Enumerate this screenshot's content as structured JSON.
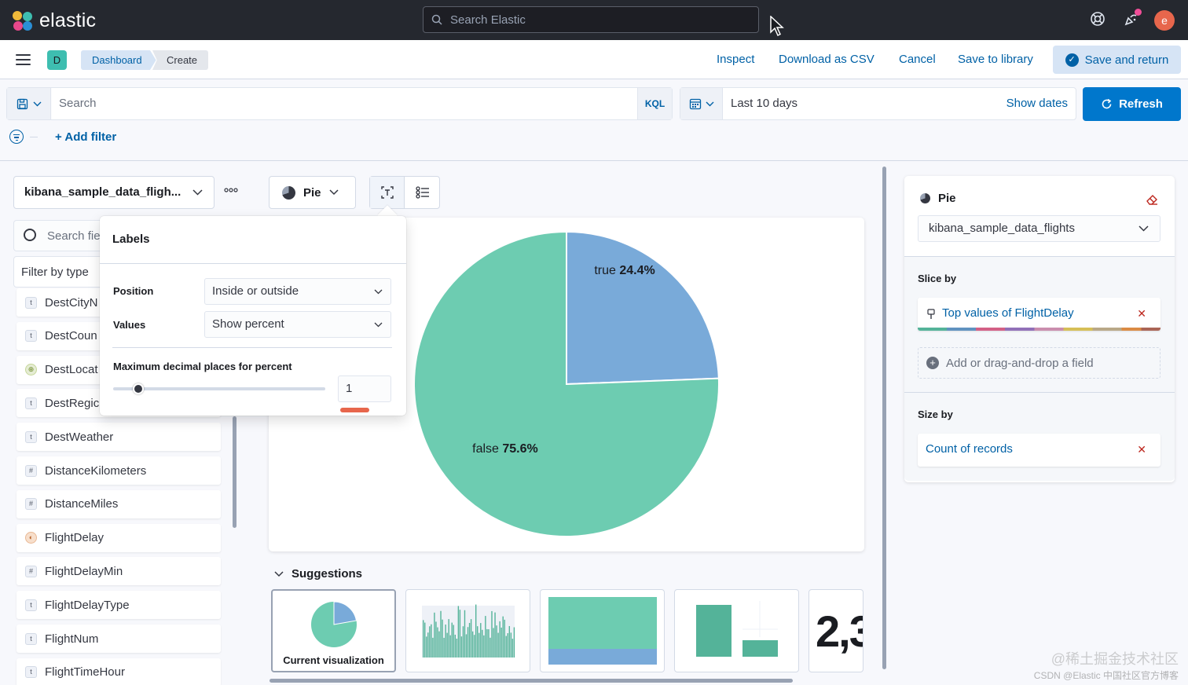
{
  "header": {
    "brand": "elastic",
    "search_placeholder": "Search Elastic",
    "avatar_initial": "e"
  },
  "navbar": {
    "space_initial": "D",
    "breadcrumbs": [
      "Dashboard",
      "Create"
    ],
    "links": [
      "Inspect",
      "Download as CSV",
      "Cancel",
      "Save to library"
    ],
    "primary_label": "Save and return"
  },
  "query": {
    "search_placeholder": "Search",
    "language": "KQL",
    "time_range": "Last 10 days",
    "show_dates": "Show dates",
    "refresh": "Refresh",
    "add_filter": "+ Add filter"
  },
  "datasource": {
    "index_pattern": "kibana_sample_data_fligh...",
    "field_search_placeholder": "Search fie",
    "filter_by_type": "Filter by type",
    "fields": [
      {
        "name": "DestCityN",
        "type": "t"
      },
      {
        "name": "DestCoun",
        "type": "t"
      },
      {
        "name": "DestLocat",
        "type": "geo"
      },
      {
        "name": "DestRegic",
        "type": "t"
      },
      {
        "name": "DestWeather",
        "type": "t"
      },
      {
        "name": "DistanceKilometers",
        "type": "#"
      },
      {
        "name": "DistanceMiles",
        "type": "#"
      },
      {
        "name": "FlightDelay",
        "type": "bool"
      },
      {
        "name": "FlightDelayMin",
        "type": "#"
      },
      {
        "name": "FlightDelayType",
        "type": "t"
      },
      {
        "name": "FlightNum",
        "type": "t"
      },
      {
        "name": "FlightTimeHour",
        "type": "t"
      }
    ]
  },
  "labels_popover": {
    "title": "Labels",
    "position_label": "Position",
    "position_value": "Inside or outside",
    "values_label": "Values",
    "values_value": "Show percent",
    "decimal_label": "Maximum decimal places for percent",
    "decimal_value": "1",
    "decimal_slider_fraction": 0.1
  },
  "toolbar": {
    "chart_type": "Pie"
  },
  "chart_data": {
    "type": "pie",
    "categories": [
      "true",
      "false"
    ],
    "values": [
      24.4,
      75.6
    ],
    "labels": [
      "true 24.4%",
      "false 75.6%"
    ],
    "colors": [
      "#79aad9",
      "#6dccb1"
    ]
  },
  "suggestions": {
    "title": "Suggestions",
    "current_label": "Current visualization",
    "metric_preview": "2,3"
  },
  "config": {
    "chart_type": "Pie",
    "index_pattern": "kibana_sample_data_flights",
    "slice_by_label": "Slice by",
    "slice_by_value": "Top values of FlightDelay",
    "add_field": "Add or drag-and-drop a field",
    "size_by_label": "Size by",
    "size_by_value": "Count of records"
  },
  "watermark": {
    "line1": "@稀土掘金技术社区",
    "line2": "CSDN @Elastic 中国社区官方博客"
  }
}
